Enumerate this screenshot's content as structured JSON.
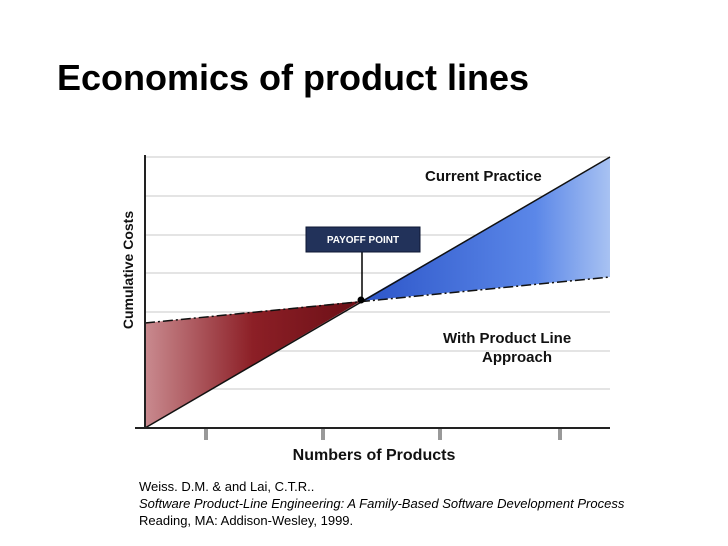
{
  "title": "Economics of product lines",
  "figure": {
    "curve_labels": [
      "Current Practice",
      "With Product Line",
      "Approach"
    ],
    "callout": "PAYOFF POINT",
    "y_axis_label": "Cumulative Costs",
    "x_axis_label": "Numbers of Products"
  },
  "citation": {
    "line1": "Weiss. D.M. &  and Lai, C.T.R..",
    "line2": "Software Product-Line Engineering: A Family-Based Software Development Process",
    "line3": "Reading, MA: Addison-Wesley, 1999."
  }
}
